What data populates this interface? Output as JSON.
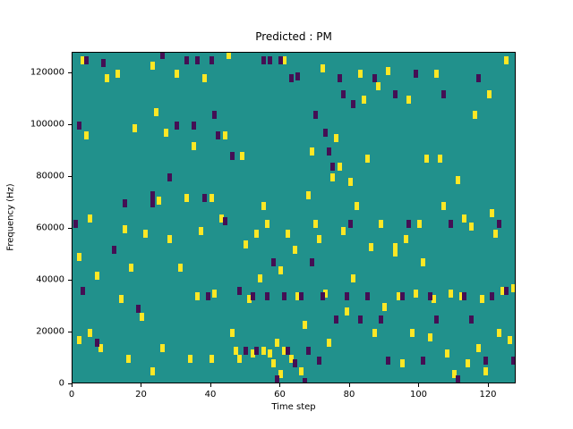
{
  "figure": {
    "title": "Predicted : PM"
  },
  "chart_data": {
    "type": "heatmap",
    "title": "Predicted : PM",
    "xlabel": "Time step",
    "ylabel": "Frequency (Hz)",
    "xlim": [
      0,
      128
    ],
    "ylim": [
      0,
      128000
    ],
    "x_ticks": [
      0,
      20,
      40,
      60,
      80,
      100,
      120
    ],
    "y_ticks": [
      0,
      20000,
      40000,
      60000,
      80000,
      100000,
      120000
    ],
    "colors": {
      "figure_background": "#ffffff",
      "mid_value": "#21918c",
      "high_value": "#fde725",
      "low_value": "#440f54"
    },
    "cells_high": [
      [
        2,
        17000
      ],
      [
        2,
        49000
      ],
      [
        3,
        125000
      ],
      [
        4,
        96000
      ],
      [
        5,
        20000
      ],
      [
        5,
        64000
      ],
      [
        7,
        42000
      ],
      [
        8,
        14000
      ],
      [
        10,
        118000
      ],
      [
        13,
        120000
      ],
      [
        14,
        33000
      ],
      [
        15,
        60000
      ],
      [
        16,
        10000
      ],
      [
        17,
        45000
      ],
      [
        18,
        99000
      ],
      [
        20,
        26000
      ],
      [
        21,
        58000
      ],
      [
        23,
        5000
      ],
      [
        23,
        123000
      ],
      [
        24,
        105000
      ],
      [
        25,
        71000
      ],
      [
        26,
        14000
      ],
      [
        27,
        97000
      ],
      [
        28,
        56000
      ],
      [
        30,
        120000
      ],
      [
        31,
        45000
      ],
      [
        33,
        72000
      ],
      [
        34,
        10000
      ],
      [
        35,
        92000
      ],
      [
        36,
        34000
      ],
      [
        37,
        59000
      ],
      [
        38,
        118000
      ],
      [
        40,
        10000
      ],
      [
        40,
        72000
      ],
      [
        41,
        35000
      ],
      [
        43,
        64000
      ],
      [
        44,
        96000
      ],
      [
        45,
        127000
      ],
      [
        46,
        20000
      ],
      [
        47,
        13000
      ],
      [
        48,
        10000
      ],
      [
        49,
        88000
      ],
      [
        50,
        54000
      ],
      [
        51,
        33000
      ],
      [
        52,
        12000
      ],
      [
        53,
        58000
      ],
      [
        54,
        41000
      ],
      [
        55,
        69000
      ],
      [
        55,
        13000
      ],
      [
        56,
        62000
      ],
      [
        57,
        12000
      ],
      [
        58,
        8000
      ],
      [
        59,
        16000
      ],
      [
        60,
        4000
      ],
      [
        60,
        44000
      ],
      [
        61,
        13000
      ],
      [
        61,
        125000
      ],
      [
        62,
        58000
      ],
      [
        63,
        10000
      ],
      [
        64,
        52000
      ],
      [
        65,
        34000
      ],
      [
        66,
        5000
      ],
      [
        67,
        23000
      ],
      [
        68,
        73000
      ],
      [
        69,
        90000
      ],
      [
        70,
        62000
      ],
      [
        71,
        56000
      ],
      [
        72,
        122000
      ],
      [
        73,
        35000
      ],
      [
        74,
        16000
      ],
      [
        75,
        80000
      ],
      [
        76,
        95000
      ],
      [
        77,
        84000
      ],
      [
        78,
        59000
      ],
      [
        79,
        28000
      ],
      [
        80,
        78000
      ],
      [
        81,
        41000
      ],
      [
        82,
        69000
      ],
      [
        83,
        120000
      ],
      [
        84,
        110000
      ],
      [
        85,
        87000
      ],
      [
        86,
        53000
      ],
      [
        87,
        20000
      ],
      [
        88,
        115000
      ],
      [
        89,
        62000
      ],
      [
        90,
        30000
      ],
      [
        91,
        121000
      ],
      [
        93,
        53000
      ],
      [
        93,
        51000
      ],
      [
        94,
        34000
      ],
      [
        95,
        8000
      ],
      [
        96,
        56000
      ],
      [
        97,
        110000
      ],
      [
        98,
        20000
      ],
      [
        99,
        35000
      ],
      [
        100,
        62000
      ],
      [
        101,
        47000
      ],
      [
        102,
        87000
      ],
      [
        103,
        18000
      ],
      [
        104,
        33000
      ],
      [
        105,
        120000
      ],
      [
        106,
        87000
      ],
      [
        107,
        69000
      ],
      [
        108,
        12000
      ],
      [
        109,
        35000
      ],
      [
        110,
        4000
      ],
      [
        111,
        79000
      ],
      [
        112,
        34000
      ],
      [
        113,
        64000
      ],
      [
        114,
        8000
      ],
      [
        115,
        61000
      ],
      [
        116,
        104000
      ],
      [
        117,
        14000
      ],
      [
        118,
        33000
      ],
      [
        119,
        5000
      ],
      [
        120,
        112000
      ],
      [
        121,
        66000
      ],
      [
        122,
        58000
      ],
      [
        123,
        20000
      ],
      [
        124,
        36000
      ],
      [
        125,
        125000
      ],
      [
        126,
        17000
      ],
      [
        127,
        37000
      ]
    ],
    "cells_low": [
      [
        1,
        62000
      ],
      [
        2,
        100000
      ],
      [
        3,
        36000
      ],
      [
        4,
        125000
      ],
      [
        7,
        16000
      ],
      [
        9,
        124000
      ],
      [
        12,
        52000
      ],
      [
        15,
        70000
      ],
      [
        19,
        29000
      ],
      [
        23,
        70000
      ],
      [
        23,
        73000
      ],
      [
        26,
        127000
      ],
      [
        28,
        80000
      ],
      [
        30,
        100000
      ],
      [
        33,
        125000
      ],
      [
        35,
        100000
      ],
      [
        36,
        125000
      ],
      [
        38,
        72000
      ],
      [
        39,
        34000
      ],
      [
        40,
        125000
      ],
      [
        41,
        104000
      ],
      [
        42,
        96000
      ],
      [
        44,
        63000
      ],
      [
        46,
        88000
      ],
      [
        48,
        36000
      ],
      [
        50,
        13000
      ],
      [
        52,
        34000
      ],
      [
        53,
        13000
      ],
      [
        55,
        125000
      ],
      [
        56,
        34000
      ],
      [
        57,
        125000
      ],
      [
        58,
        47000
      ],
      [
        59,
        2000
      ],
      [
        60,
        125000
      ],
      [
        61,
        34000
      ],
      [
        62,
        13000
      ],
      [
        63,
        118000
      ],
      [
        64,
        8000
      ],
      [
        65,
        119000
      ],
      [
        66,
        34000
      ],
      [
        67,
        1000
      ],
      [
        68,
        13000
      ],
      [
        69,
        47000
      ],
      [
        70,
        104000
      ],
      [
        71,
        9000
      ],
      [
        72,
        34000
      ],
      [
        73,
        97000
      ],
      [
        74,
        90000
      ],
      [
        75,
        84000
      ],
      [
        76,
        25000
      ],
      [
        77,
        118000
      ],
      [
        78,
        112000
      ],
      [
        79,
        34000
      ],
      [
        80,
        62000
      ],
      [
        81,
        108000
      ],
      [
        83,
        25000
      ],
      [
        85,
        34000
      ],
      [
        87,
        118000
      ],
      [
        89,
        25000
      ],
      [
        91,
        9000
      ],
      [
        93,
        112000
      ],
      [
        95,
        34000
      ],
      [
        97,
        62000
      ],
      [
        99,
        120000
      ],
      [
        101,
        9000
      ],
      [
        103,
        34000
      ],
      [
        105,
        25000
      ],
      [
        107,
        112000
      ],
      [
        109,
        62000
      ],
      [
        111,
        2000
      ],
      [
        113,
        34000
      ],
      [
        115,
        25000
      ],
      [
        117,
        118000
      ],
      [
        119,
        9000
      ],
      [
        121,
        34000
      ],
      [
        123,
        62000
      ],
      [
        125,
        36000
      ],
      [
        127,
        9000
      ]
    ]
  }
}
